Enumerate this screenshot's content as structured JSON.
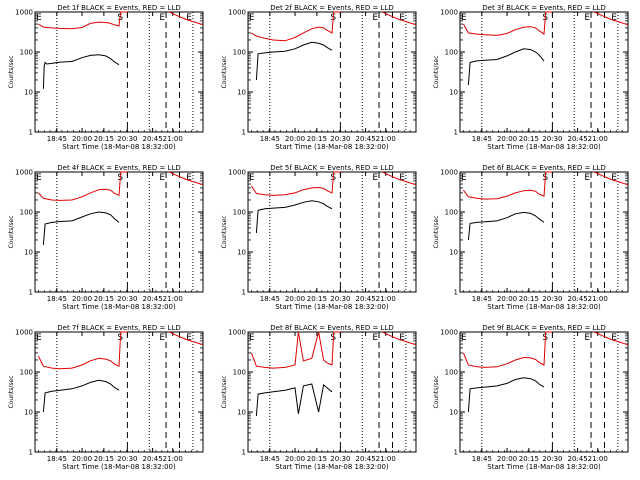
{
  "figure": {
    "background": "#ffffff",
    "colors": {
      "events": "#000000",
      "lld": "#e00000",
      "axes": "#000000"
    }
  },
  "chart_data": [
    {
      "type": "line",
      "title": "Det 1f BLACK = Events, RED = LLD",
      "xlabel": "Start Time (18-Mar-08 18:32:00)",
      "ylabel": "Counts/sec",
      "yscale": "log",
      "ylim": [
        1,
        1000
      ],
      "y_ticks": [
        "1",
        "10",
        "100",
        "1000"
      ],
      "x_ticks": [
        "18:45",
        "20:00",
        "20:15",
        "20:30",
        "20:45",
        "21:00"
      ],
      "markers": [
        "S",
        "E",
        "E"
      ],
      "series": [
        {
          "name": "Events",
          "color": "#000000",
          "x": [
            0.05,
            0.055,
            0.06,
            0.07,
            0.1,
            0.15,
            0.22,
            0.28,
            0.33,
            0.38,
            0.42,
            0.45,
            0.47,
            0.5
          ],
          "y": [
            12,
            45,
            55,
            50,
            52,
            56,
            58,
            72,
            82,
            85,
            80,
            68,
            58,
            48
          ]
        },
        {
          "name": "LLD",
          "color": "#e00000",
          "x": [
            0.02,
            0.05,
            0.1,
            0.15,
            0.22,
            0.28,
            0.33,
            0.38,
            0.42,
            0.45,
            0.47,
            0.5,
            0.51,
            0.52,
            0.55
          ],
          "y": [
            500,
            420,
            400,
            390,
            380,
            410,
            520,
            560,
            550,
            520,
            480,
            450,
            1000,
            1000,
            1000
          ]
        }
      ]
    },
    {
      "type": "line",
      "title": "Det 2f BLACK = Events, RED = LLD",
      "xlabel": "Start Time (18-Mar-08 18:32:00)",
      "ylabel": "Counts/sec",
      "yscale": "log",
      "ylim": [
        1,
        1000
      ],
      "y_ticks": [
        "1",
        "10",
        "100",
        "1000"
      ],
      "x_ticks": [
        "18:45",
        "20:00",
        "20:15",
        "20:30",
        "20:45",
        "21:00"
      ],
      "markers": [
        "S",
        "E",
        "E"
      ],
      "series": [
        {
          "name": "Events",
          "color": "#000000",
          "x": [
            0.05,
            0.06,
            0.1,
            0.15,
            0.22,
            0.28,
            0.33,
            0.38,
            0.42,
            0.45,
            0.47,
            0.5
          ],
          "y": [
            20,
            90,
            95,
            100,
            105,
            120,
            150,
            175,
            165,
            150,
            130,
            110
          ]
        },
        {
          "name": "LLD",
          "color": "#e00000",
          "x": [
            0.02,
            0.05,
            0.1,
            0.15,
            0.22,
            0.28,
            0.33,
            0.38,
            0.42,
            0.45,
            0.47,
            0.5,
            0.51,
            0.52,
            0.55
          ],
          "y": [
            300,
            250,
            220,
            200,
            190,
            230,
            300,
            380,
            420,
            400,
            350,
            300,
            1000,
            1000,
            1000
          ]
        }
      ]
    },
    {
      "type": "line",
      "title": "Det 3f BLACK = Events, RED = LLD",
      "xlabel": "Start Time (18-Mar-08 18:32:00)",
      "ylabel": "Counts/sec",
      "yscale": "log",
      "ylim": [
        1,
        1000
      ],
      "y_ticks": [
        "1",
        "10",
        "100",
        "1000"
      ],
      "x_ticks": [
        "18:45",
        "20:00",
        "20:15",
        "20:30",
        "20:45",
        "21:00"
      ],
      "markers": [
        "S",
        "E",
        "E"
      ],
      "series": [
        {
          "name": "Events",
          "color": "#000000",
          "x": [
            0.05,
            0.06,
            0.1,
            0.15,
            0.22,
            0.28,
            0.33,
            0.38,
            0.42,
            0.45,
            0.47,
            0.5
          ],
          "y": [
            15,
            55,
            60,
            62,
            65,
            80,
            100,
            120,
            115,
            100,
            85,
            60
          ]
        },
        {
          "name": "LLD",
          "color": "#e00000",
          "x": [
            0.02,
            0.05,
            0.1,
            0.15,
            0.22,
            0.28,
            0.33,
            0.38,
            0.42,
            0.45,
            0.47,
            0.5,
            0.51,
            0.52,
            0.55
          ],
          "y": [
            500,
            300,
            280,
            270,
            260,
            290,
            360,
            420,
            430,
            400,
            340,
            280,
            1000,
            1000,
            1000
          ]
        }
      ]
    },
    {
      "type": "line",
      "title": "Det 4f BLACK = Events, RED = LLD",
      "xlabel": "Start Time (18-Mar-08 18:32:00)",
      "ylabel": "Counts/sec",
      "yscale": "log",
      "ylim": [
        1,
        1000
      ],
      "y_ticks": [
        "1",
        "10",
        "100",
        "1000"
      ],
      "x_ticks": [
        "18:45",
        "20:00",
        "20:15",
        "20:30",
        "20:45",
        "21:00"
      ],
      "markers": [
        "S",
        "E",
        "E"
      ],
      "series": [
        {
          "name": "Events",
          "color": "#000000",
          "x": [
            0.05,
            0.06,
            0.1,
            0.15,
            0.22,
            0.28,
            0.33,
            0.38,
            0.42,
            0.45,
            0.47,
            0.5
          ],
          "y": [
            15,
            50,
            55,
            58,
            60,
            75,
            90,
            100,
            95,
            85,
            70,
            55
          ]
        },
        {
          "name": "LLD",
          "color": "#e00000",
          "x": [
            0.02,
            0.05,
            0.1,
            0.15,
            0.22,
            0.28,
            0.33,
            0.38,
            0.42,
            0.45,
            0.47,
            0.5,
            0.51,
            0.52,
            0.55
          ],
          "y": [
            300,
            220,
            200,
            195,
            200,
            240,
            300,
            360,
            370,
            350,
            300,
            260,
            1000,
            1000,
            1000
          ]
        }
      ]
    },
    {
      "type": "line",
      "title": "Det 5f BLACK = Events, RED = LLD",
      "xlabel": "Start Time (18-Mar-08 18:32:00)",
      "ylabel": "Counts/sec",
      "yscale": "log",
      "ylim": [
        1,
        1000
      ],
      "y_ticks": [
        "1",
        "10",
        "100",
        "1000"
      ],
      "x_ticks": [
        "18:45",
        "20:00",
        "20:15",
        "20:30",
        "20:45",
        "21:00"
      ],
      "markers": [
        "S",
        "E",
        "E"
      ],
      "series": [
        {
          "name": "Events",
          "color": "#000000",
          "x": [
            0.05,
            0.06,
            0.1,
            0.15,
            0.22,
            0.28,
            0.33,
            0.38,
            0.42,
            0.45,
            0.47,
            0.5
          ],
          "y": [
            30,
            110,
            120,
            125,
            130,
            150,
            175,
            190,
            180,
            160,
            140,
            120
          ]
        },
        {
          "name": "LLD",
          "color": "#e00000",
          "x": [
            0.02,
            0.05,
            0.1,
            0.15,
            0.22,
            0.28,
            0.33,
            0.38,
            0.42,
            0.45,
            0.47,
            0.5,
            0.51,
            0.52,
            0.55
          ],
          "y": [
            450,
            290,
            270,
            260,
            270,
            300,
            360,
            400,
            410,
            390,
            340,
            300,
            1000,
            1000,
            1000
          ]
        }
      ]
    },
    {
      "type": "line",
      "title": "Det 6f BLACK = Events, RED = LLD",
      "xlabel": "Start Time (18-Mar-08 18:32:00)",
      "ylabel": "Counts/sec",
      "yscale": "log",
      "ylim": [
        1,
        1000
      ],
      "y_ticks": [
        "1",
        "10",
        "100",
        "1000"
      ],
      "x_ticks": [
        "18:45",
        "20:00",
        "20:15",
        "20:30",
        "20:45",
        "21:00"
      ],
      "markers": [
        "S",
        "E",
        "E"
      ],
      "series": [
        {
          "name": "Events",
          "color": "#000000",
          "x": [
            0.05,
            0.06,
            0.1,
            0.15,
            0.22,
            0.28,
            0.33,
            0.38,
            0.42,
            0.45,
            0.47,
            0.5
          ],
          "y": [
            20,
            52,
            55,
            57,
            60,
            72,
            90,
            98,
            92,
            80,
            68,
            55
          ]
        },
        {
          "name": "LLD",
          "color": "#e00000",
          "x": [
            0.02,
            0.05,
            0.1,
            0.15,
            0.22,
            0.28,
            0.33,
            0.38,
            0.42,
            0.45,
            0.47,
            0.5,
            0.51,
            0.52,
            0.55
          ],
          "y": [
            350,
            240,
            220,
            210,
            215,
            250,
            300,
            340,
            350,
            330,
            280,
            250,
            1000,
            1000,
            1000
          ]
        }
      ]
    },
    {
      "type": "line",
      "title": "Det 7f BLACK = Events, RED = LLD",
      "xlabel": "Start Time (18-Mar-08 18:32:00)",
      "ylabel": "Counts/sec",
      "yscale": "log",
      "ylim": [
        1,
        1000
      ],
      "y_ticks": [
        "1",
        "10",
        "100",
        "1000"
      ],
      "x_ticks": [
        "18:45",
        "20:00",
        "20:15",
        "20:30",
        "20:45",
        "21:00"
      ],
      "markers": [
        "S",
        "E",
        "E"
      ],
      "series": [
        {
          "name": "Events",
          "color": "#000000",
          "x": [
            0.05,
            0.06,
            0.1,
            0.15,
            0.22,
            0.28,
            0.33,
            0.38,
            0.42,
            0.45,
            0.47,
            0.5
          ],
          "y": [
            10,
            30,
            33,
            35,
            38,
            45,
            55,
            62,
            58,
            50,
            42,
            35
          ]
        },
        {
          "name": "LLD",
          "color": "#e00000",
          "x": [
            0.02,
            0.05,
            0.1,
            0.15,
            0.22,
            0.28,
            0.33,
            0.38,
            0.42,
            0.45,
            0.47,
            0.5,
            0.51,
            0.52,
            0.55
          ],
          "y": [
            250,
            140,
            125,
            120,
            125,
            150,
            190,
            220,
            210,
            190,
            160,
            140,
            1000,
            1000,
            1000
          ]
        }
      ]
    },
    {
      "type": "line",
      "title": "Det 8f BLACK = Events, RED = LLD",
      "xlabel": "Start Time (18-Mar-08 18:32:00)",
      "ylabel": "Counts/sec",
      "yscale": "log",
      "ylim": [
        1,
        1000
      ],
      "y_ticks": [
        "1",
        "10",
        "100",
        "1000"
      ],
      "x_ticks": [
        "18:45",
        "20:00",
        "20:15",
        "20:30",
        "20:45",
        "21:00"
      ],
      "markers": [
        "S",
        "E",
        "E"
      ],
      "series": [
        {
          "name": "Events",
          "color": "#000000",
          "x": [
            0.05,
            0.06,
            0.1,
            0.15,
            0.22,
            0.28,
            0.3,
            0.33,
            0.38,
            0.42,
            0.45,
            0.47,
            0.5
          ],
          "y": [
            8,
            28,
            30,
            32,
            35,
            40,
            9,
            45,
            50,
            10,
            48,
            40,
            32
          ]
        },
        {
          "name": "LLD",
          "color": "#e00000",
          "x": [
            0.02,
            0.05,
            0.1,
            0.15,
            0.22,
            0.28,
            0.3,
            0.33,
            0.38,
            0.42,
            0.45,
            0.47,
            0.5,
            0.51,
            0.52,
            0.55
          ],
          "y": [
            300,
            140,
            130,
            125,
            130,
            150,
            1000,
            190,
            220,
            1000,
            200,
            170,
            150,
            1000,
            1000,
            1000
          ]
        }
      ]
    },
    {
      "type": "line",
      "title": "Det 9f BLACK = Events, RED = LLD",
      "xlabel": "Start Time (18-Mar-08 18:32:00)",
      "ylabel": "Counts/sec",
      "yscale": "log",
      "ylim": [
        1,
        1000
      ],
      "y_ticks": [
        "1",
        "10",
        "100",
        "1000"
      ],
      "x_ticks": [
        "18:45",
        "20:00",
        "20:15",
        "20:30",
        "20:45",
        "21:00"
      ],
      "markers": [
        "S",
        "E",
        "E"
      ],
      "series": [
        {
          "name": "Events",
          "color": "#000000",
          "x": [
            0.05,
            0.06,
            0.1,
            0.15,
            0.22,
            0.28,
            0.33,
            0.38,
            0.42,
            0.45,
            0.47,
            0.5
          ],
          "y": [
            10,
            38,
            40,
            42,
            45,
            52,
            65,
            72,
            68,
            60,
            50,
            42
          ]
        },
        {
          "name": "LLD",
          "color": "#e00000",
          "x": [
            0.02,
            0.05,
            0.1,
            0.15,
            0.22,
            0.28,
            0.33,
            0.38,
            0.42,
            0.45,
            0.47,
            0.5,
            0.51,
            0.52,
            0.55
          ],
          "y": [
            300,
            150,
            135,
            130,
            135,
            160,
            200,
            230,
            225,
            205,
            175,
            150,
            1000,
            1000,
            1000
          ]
        }
      ]
    }
  ]
}
